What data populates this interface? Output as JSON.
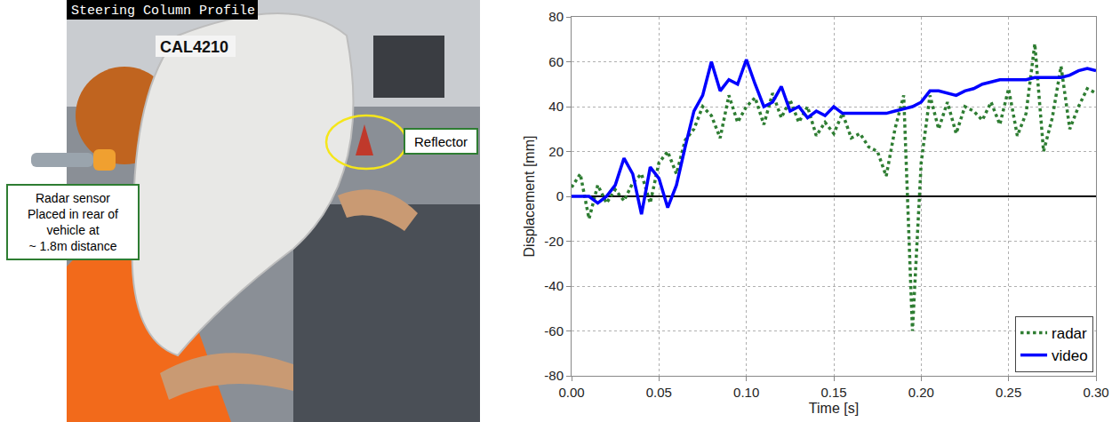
{
  "chart_data": {
    "type": "line",
    "x_label": "Time [s]",
    "y_label": "Displacement [mm]",
    "xlim": [
      0,
      0.3
    ],
    "ylim": [
      -80,
      80
    ],
    "xticks": [
      {
        "value": 0,
        "label": "0.00"
      },
      {
        "value": 0.05,
        "label": "0.05"
      },
      {
        "value": 0.1,
        "label": "0.10"
      },
      {
        "value": 0.15,
        "label": "0.15"
      },
      {
        "value": 0.2,
        "label": "0.20"
      },
      {
        "value": 0.25,
        "label": "0.25"
      },
      {
        "value": 0.3,
        "label": "0.30"
      }
    ],
    "yticks": [
      -80,
      -60,
      -40,
      -20,
      0,
      20,
      40,
      60,
      80
    ],
    "grid": true,
    "legend": "lower right",
    "x": [
      0,
      0.005,
      0.01,
      0.015,
      0.02,
      0.025,
      0.03,
      0.035,
      0.04,
      0.045,
      0.05,
      0.055,
      0.06,
      0.065,
      0.07,
      0.075,
      0.08,
      0.085,
      0.09,
      0.095,
      0.1,
      0.105,
      0.11,
      0.115,
      0.12,
      0.125,
      0.13,
      0.135,
      0.14,
      0.145,
      0.15,
      0.155,
      0.16,
      0.165,
      0.17,
      0.175,
      0.18,
      0.185,
      0.19,
      0.195,
      0.2,
      0.205,
      0.21,
      0.215,
      0.22,
      0.225,
      0.23,
      0.235,
      0.24,
      0.245,
      0.25,
      0.255,
      0.26,
      0.265,
      0.27,
      0.275,
      0.28,
      0.285,
      0.29,
      0.295,
      0.3
    ],
    "series": [
      {
        "name": "radar",
        "color": "#2e7d32",
        "line_style": "dotted",
        "values": [
          4,
          10,
          -10,
          5,
          -3,
          3,
          -2,
          6,
          10,
          -3,
          15,
          20,
          10,
          25,
          30,
          40,
          36,
          26,
          45,
          33,
          40,
          44,
          32,
          46,
          35,
          43,
          33,
          40,
          27,
          33,
          28,
          37,
          26,
          28,
          22,
          20,
          9,
          30,
          45,
          -60,
          15,
          45,
          30,
          42,
          28,
          40,
          38,
          34,
          42,
          32,
          48,
          27,
          37,
          68,
          20,
          35,
          58,
          30,
          40,
          48,
          46
        ]
      },
      {
        "name": "video",
        "color": "#0000ff",
        "line_style": "solid",
        "values": [
          0,
          0,
          0,
          -3,
          0,
          5,
          17,
          10,
          -8,
          13,
          8,
          -5,
          5,
          22,
          38,
          45,
          60,
          47,
          52,
          50,
          61,
          50,
          40,
          42,
          49,
          38,
          40,
          35,
          38,
          36,
          40,
          37,
          37,
          37,
          37,
          37,
          37,
          38,
          39,
          40,
          42,
          47,
          47,
          46,
          45,
          47,
          48,
          50,
          51,
          52,
          52,
          52,
          52,
          53,
          53,
          53,
          53,
          54,
          56,
          57,
          56
        ]
      }
    ]
  },
  "photo": {
    "overlay_title": "Steering Column Profile",
    "plate": "CAL4210",
    "reflector_label": "Reflector",
    "sensor_label": [
      "Radar sensor",
      "Placed in rear of",
      "vehicle at",
      "~ 1.8m distance"
    ]
  }
}
